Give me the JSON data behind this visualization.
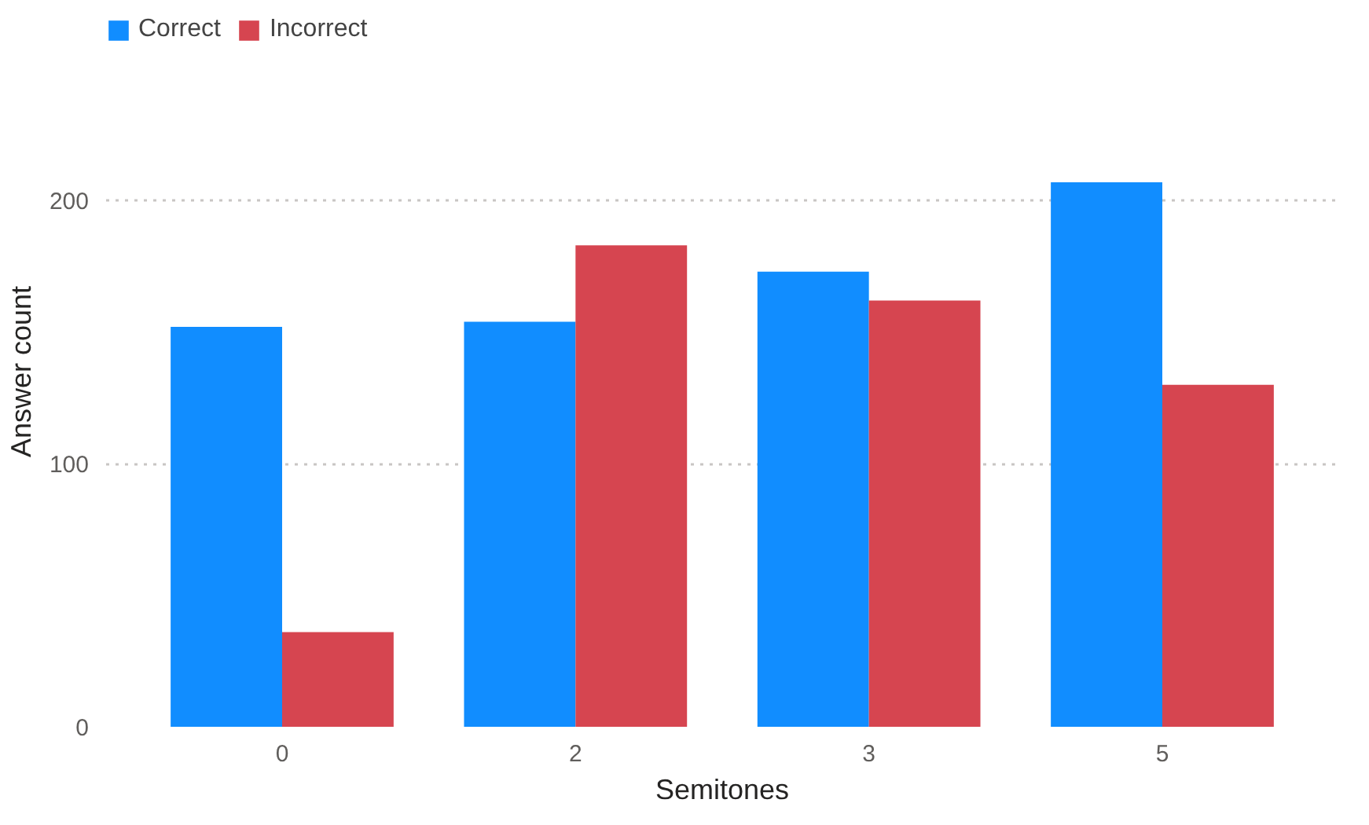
{
  "chart_data": {
    "type": "bar",
    "xlabel": "Semitones",
    "ylabel": "Answer count",
    "categories": [
      "0",
      "2",
      "3",
      "5"
    ],
    "series": [
      {
        "name": "Correct",
        "color": "#118dff",
        "values": [
          152,
          154,
          173,
          207
        ]
      },
      {
        "name": "Incorrect",
        "color": "#d64550",
        "values": [
          36,
          183,
          162,
          130
        ]
      }
    ],
    "ylim": [
      0,
      270
    ],
    "yticks": [
      0,
      100,
      200
    ],
    "grid": "y",
    "legend": "top left"
  }
}
